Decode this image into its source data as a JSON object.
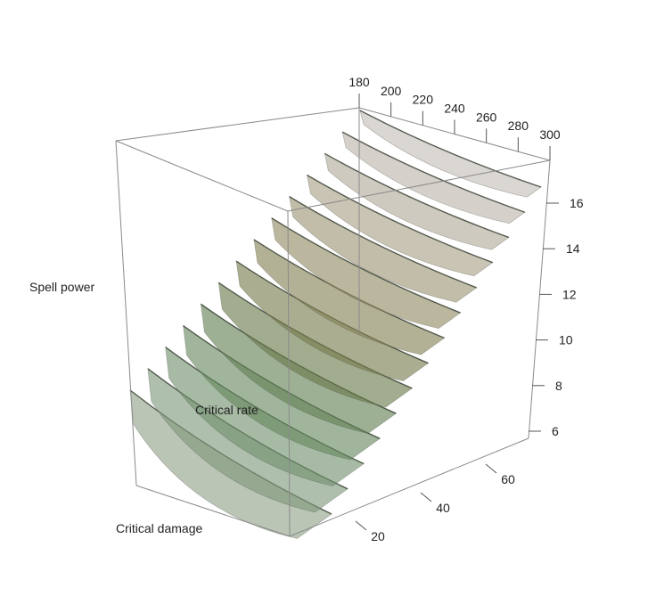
{
  "chart_data": {
    "type": "surface3d",
    "axes": {
      "x": {
        "label": "Critical damage",
        "ticks": [
          20,
          40,
          60
        ]
      },
      "y": {
        "label": "Critical rate",
        "ticks": [
          180,
          200,
          220,
          240,
          260,
          280,
          300
        ]
      },
      "z": {
        "label": "Spell power",
        "ticks": [
          6,
          8,
          10,
          12,
          14,
          16
        ]
      }
    },
    "series": [
      {
        "level": 1,
        "color": "#8fa287"
      },
      {
        "level": 2,
        "color": "#7e987a"
      },
      {
        "level": 3,
        "color": "#70906c"
      },
      {
        "level": 4,
        "color": "#66885e"
      },
      {
        "level": 5,
        "color": "#617f53"
      },
      {
        "level": 6,
        "color": "#69794a"
      },
      {
        "level": 7,
        "color": "#767a4b"
      },
      {
        "level": 8,
        "color": "#848154"
      },
      {
        "level": 9,
        "color": "#928a63"
      },
      {
        "level": 10,
        "color": "#9d9474"
      },
      {
        "level": 11,
        "color": "#a89f86"
      },
      {
        "level": 12,
        "color": "#b2aa98"
      },
      {
        "level": 13,
        "color": "#bbb4a9"
      },
      {
        "level": 14,
        "color": "#c4bdb6"
      }
    ],
    "legend": "none",
    "grid": false,
    "box": true
  }
}
